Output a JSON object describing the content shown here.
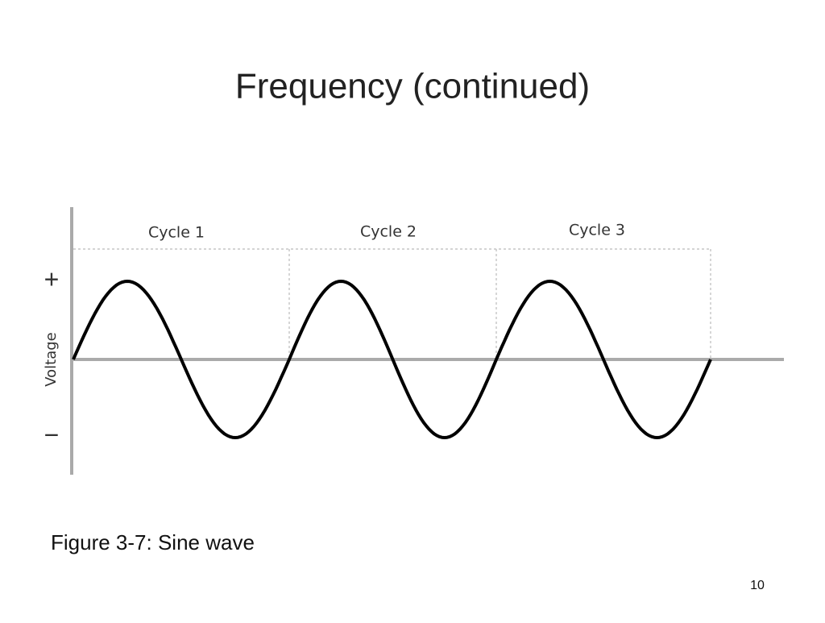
{
  "slide": {
    "title": "Frequency (continued)",
    "figure": {
      "cycles": [
        "Cycle 1",
        "Cycle 2",
        "Cycle 3"
      ],
      "plus": "+",
      "minus": "−",
      "axis_label": "Voltage"
    },
    "caption": "Figure 3-7: Sine wave",
    "page_number": "10"
  }
}
